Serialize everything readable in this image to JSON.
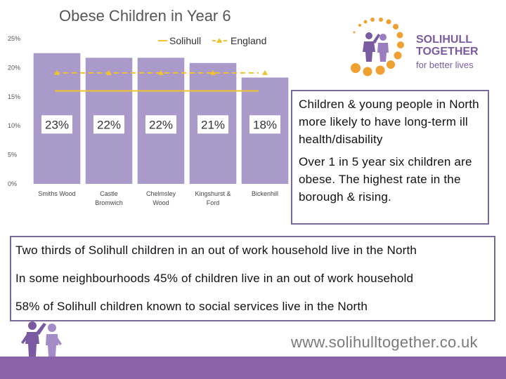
{
  "chart_data": {
    "type": "bar",
    "title": "Obese Children in Year 6",
    "categories": [
      "Smiths Wood",
      "Castle Bromwich",
      "Chelmsley Wood",
      "Kingshurst & Ford",
      "Bickenhill"
    ],
    "category_lines": [
      [
        "Smiths Wood"
      ],
      [
        "Castle",
        "Bromwich"
      ],
      [
        "Chelmsley",
        "Wood"
      ],
      [
        "Kingshurst &",
        "Ford"
      ],
      [
        "Bickenhill"
      ]
    ],
    "values": [
      22.5,
      21.7,
      21.7,
      20.8,
      18.3
    ],
    "data_labels": [
      "23%",
      "22%",
      "22%",
      "21%",
      "18%"
    ],
    "ylim": [
      0,
      25
    ],
    "yticks": [
      0,
      5,
      10,
      15,
      20,
      25
    ],
    "ytick_labels": [
      "0%",
      "5%",
      "10%",
      "15%",
      "20%",
      "25%"
    ],
    "reference_lines": [
      {
        "name": "Solihull",
        "value": 16.0,
        "color": "#f2c12e",
        "style": "solid"
      },
      {
        "name": "England",
        "value": 19.1,
        "color": "#f2c12e",
        "style": "dashed-triangle"
      }
    ],
    "legend_position": "top-right",
    "bar_color": "#a99ac9",
    "xlabel": "",
    "ylabel": ""
  },
  "logo": {
    "line1": "SOLIHULL",
    "line2": "TOGETHER",
    "tagline": "for better lives",
    "color": "#7a5ba1",
    "accent": "#f0a030"
  },
  "info_box": {
    "paragraphs": [
      "Children & young people in North more likely to have long-term ill health/disability",
      "Over 1 in 5 year six children are obese. The highest rate in the  borough & rising."
    ]
  },
  "facts_box": {
    "lines": [
      "Two thirds of Solihull children in an out of work household live in the North",
      "In some neighbourhoods 45% of children live in an out of work household",
      "58% of Solihull children known to social services live in the North"
    ]
  },
  "footer": {
    "url": "www.solihulltogether.co.uk",
    "bar_color": "#8a63a8"
  }
}
